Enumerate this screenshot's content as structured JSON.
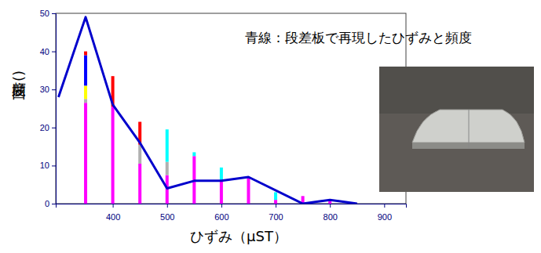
{
  "chart_data": {
    "type": "bar",
    "stacked": true,
    "annotation": "青線：段差板で再現したひずみと頻度",
    "xlabel": "ひずみ（μST）",
    "ylabel": "頻度(回)",
    "x": [
      350,
      400,
      450,
      500,
      550,
      600,
      650,
      700,
      750,
      800
    ],
    "xlim": [
      295,
      940
    ],
    "xticks": [
      400,
      500,
      600,
      700,
      800,
      900
    ],
    "ylim": [
      0,
      50
    ],
    "yticks": [
      0,
      10,
      20,
      30,
      40,
      50
    ],
    "series": [
      {
        "type": "bar",
        "color": "#ff00ff",
        "values": [
          26.5,
          25.5,
          10.5,
          7.5,
          12.5,
          6,
          7,
          1,
          2,
          1
        ]
      },
      {
        "type": "bar",
        "color": "#b0b0b0",
        "values": [
          1,
          0,
          5,
          3.5,
          0,
          0,
          0,
          0,
          0,
          0
        ]
      },
      {
        "type": "bar",
        "color": "#ffff00",
        "values": [
          3.5,
          0,
          0,
          0,
          0,
          0,
          0,
          0,
          0,
          0
        ]
      },
      {
        "type": "bar",
        "color": "#0000ff",
        "values": [
          8,
          0,
          0,
          0,
          0,
          0,
          0,
          0,
          0,
          0
        ]
      },
      {
        "type": "bar",
        "color": "#ff0000",
        "values": [
          1,
          8,
          6,
          0,
          0,
          0,
          0,
          0,
          0,
          0
        ]
      },
      {
        "type": "bar",
        "color": "#00ffff",
        "values": [
          0,
          0,
          0,
          8.5,
          1,
          3.5,
          0,
          2,
          0,
          0
        ]
      },
      {
        "type": "line",
        "color": "#0000cc",
        "x": [
          300,
          350,
          400,
          450,
          500,
          550,
          600,
          650,
          750,
          800,
          850
        ],
        "values": [
          28,
          49,
          26,
          16,
          4,
          6,
          6,
          7,
          0,
          1,
          0
        ]
      }
    ]
  }
}
